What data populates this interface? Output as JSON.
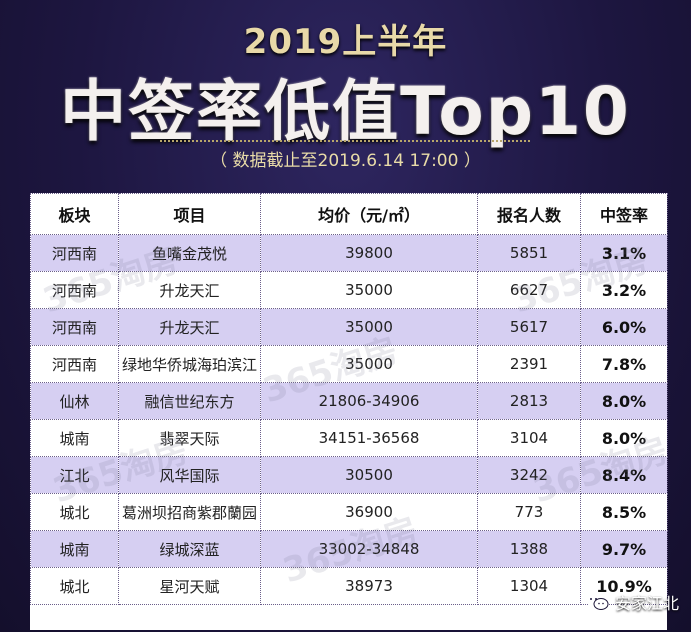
{
  "header": {
    "year_line": "2019上半年",
    "title": "中签率低值Top10",
    "subtitle": "（ 数据截止至2019.6.14  17:00 ）"
  },
  "table": {
    "columns": [
      "板块",
      "项目",
      "均价（元/㎡）",
      "报名人数",
      "中签率"
    ],
    "rows": [
      {
        "area": "河西南",
        "project": "鱼嘴金茂悦",
        "price": "39800",
        "applicants": "5851",
        "rate": "3.1%"
      },
      {
        "area": "河西南",
        "project": "升龙天汇",
        "price": "35000",
        "applicants": "6627",
        "rate": "3.2%"
      },
      {
        "area": "河西南",
        "project": "升龙天汇",
        "price": "35000",
        "applicants": "5617",
        "rate": "6.0%"
      },
      {
        "area": "河西南",
        "project": "绿地华侨城海珀滨江",
        "price": "35000",
        "applicants": "2391",
        "rate": "7.8%"
      },
      {
        "area": "仙林",
        "project": "融信世纪东方",
        "price": "21806-34906",
        "applicants": "2813",
        "rate": "8.0%"
      },
      {
        "area": "城南",
        "project": "翡翠天际",
        "price": "34151-36568",
        "applicants": "3104",
        "rate": "8.0%"
      },
      {
        "area": "江北",
        "project": "风华国际",
        "price": "30500",
        "applicants": "3242",
        "rate": "8.4%"
      },
      {
        "area": "城北",
        "project": "葛洲坝招商紫郡蘭园",
        "price": "36900",
        "applicants": "773",
        "rate": "8.5%"
      },
      {
        "area": "城南",
        "project": "绿城深蓝",
        "price": "33002-34848",
        "applicants": "1388",
        "rate": "9.7%"
      },
      {
        "area": "城北",
        "project": "星河天赋",
        "price": "38973",
        "applicants": "1304",
        "rate": "10.9%"
      }
    ]
  },
  "watermark": "365淘房",
  "brand": {
    "label": "安家江北",
    "icon": "wechat-icon"
  }
}
